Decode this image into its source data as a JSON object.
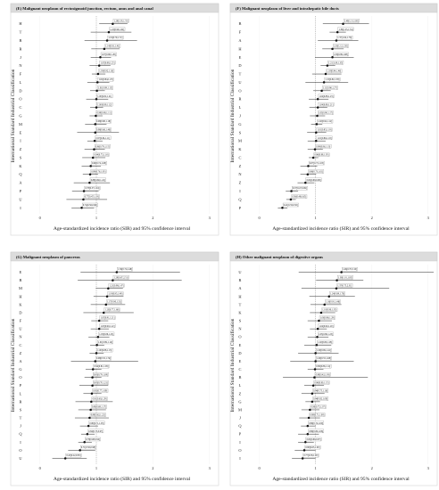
{
  "chart_data": [
    {
      "type": "forest",
      "title": "(E) Malignant neoplasm of rectosigmoid junction, rectum, anus and anal canal",
      "xlabel": "Age-standardized incidence ratio (SIR) and 95% confidence interval",
      "ylabel": "International Standard Industrial Classification",
      "xlim": [
        -0.2,
        3.1
      ],
      "xticks": [
        0,
        1,
        2,
        3
      ],
      "reference_line": 1,
      "rows": [
        {
          "cat": "H",
          "sir": 1.29,
          "lo": 1.05,
          "hi": 1.55,
          "label": "1.29[1.05,1.55]"
        },
        {
          "cat": "T",
          "sir": 1.22,
          "lo": 0.9,
          "hi": 1.62,
          "label": "1.22[0.90,1.62]"
        },
        {
          "cat": "B",
          "sir": 1.19,
          "lo": 0.79,
          "hi": 1.72,
          "label": "1.19[0.79,1.72]"
        },
        {
          "cat": "R",
          "sir": 1.14,
          "lo": 0.91,
          "hi": 1.41,
          "label": "1.14[0.91,1.41]"
        },
        {
          "cat": "J",
          "sir": 1.07,
          "lo": 0.9,
          "hi": 1.26,
          "label": "1.07[0.90,1.26]"
        },
        {
          "cat": "N",
          "sir": 1.05,
          "lo": 0.88,
          "hi": 1.25,
          "label": "1.05[0.88,1.25]"
        },
        {
          "cat": "F",
          "sir": 1.03,
          "lo": 0.92,
          "hi": 1.16,
          "label": "1.03[0.92,1.16]"
        },
        {
          "cat": "L",
          "sir": 1.02,
          "lo": 0.84,
          "hi": 1.23,
          "label": "1.02[0.84,1.23]"
        },
        {
          "cat": "D",
          "sir": 1.01,
          "lo": 0.89,
          "hi": 1.15,
          "label": "1.01[0.89,1.15]"
        },
        {
          "cat": "O",
          "sir": 1.0,
          "lo": 0.82,
          "hi": 1.21,
          "label": "1.00[0.82,1.21]"
        },
        {
          "cat": "C",
          "sir": 1.0,
          "lo": 0.89,
          "hi": 1.12,
          "label": "1.00[0.89,1.12]"
        },
        {
          "cat": "G",
          "sir": 0.99,
          "lo": 0.88,
          "hi": 1.11,
          "label": "0.99[0.88,1.11]"
        },
        {
          "cat": "M",
          "sir": 0.98,
          "lo": 0.8,
          "hi": 1.18,
          "label": "0.98[0.80,1.18]"
        },
        {
          "cat": "E",
          "sir": 0.98,
          "lo": 0.66,
          "hi": 1.4,
          "label": "0.98[0.66,1.40]"
        },
        {
          "cat": "I",
          "sir": 0.97,
          "lo": 0.84,
          "hi": 1.11,
          "label": "0.97[0.84,1.11]"
        },
        {
          "cat": "Z",
          "sir": 0.96,
          "lo": 0.79,
          "hi": 1.15,
          "label": "0.96[0.79,1.15]"
        },
        {
          "cat": "S",
          "sir": 0.94,
          "lo": 0.75,
          "hi": 1.16,
          "label": "0.94[0.75,1.16]"
        },
        {
          "cat": "K",
          "sir": 0.9,
          "lo": 0.74,
          "hi": 1.08,
          "label": "0.90[0.74,1.08]"
        },
        {
          "cat": "Q",
          "sir": 0.89,
          "lo": 0.76,
          "hi": 1.03,
          "label": "0.89[0.76,1.03]"
        },
        {
          "cat": "A",
          "sir": 0.88,
          "lo": 0.6,
          "hi": 1.24,
          "label": "0.88[0.60,1.24]"
        },
        {
          "cat": "P",
          "sir": 0.78,
          "lo": 0.57,
          "hi": 1.04,
          "label": "0.78[0.57,1.04]"
        },
        {
          "cat": "U",
          "sir": 0.77,
          "lo": 0.47,
          "hi": 1.19,
          "label": "0.77[0.47,1.19]"
        },
        {
          "cat": "I",
          "sir": 0.74,
          "lo": 0.56,
          "hi": 0.96,
          "label": "0.74[0.56,0.96]"
        }
      ]
    },
    {
      "type": "forest",
      "title": "(F) Malignant neoplasm of liver and intrahepatic bile ducts",
      "xlabel": "Age-standardized incidence ratio (SIR) and 95% confidence interval",
      "ylabel": "International Standard Industrial Classification",
      "xlim": [
        -0.2,
        3.1
      ],
      "xticks": [
        0,
        1,
        2,
        3
      ],
      "reference_line": 1,
      "rows": [
        {
          "cat": "B",
          "sir": 1.49,
          "lo": 1.13,
          "hi": 1.95,
          "label": "1.49[1.13,1.95]"
        },
        {
          "cat": "F",
          "sir": 1.39,
          "lo": 1.25,
          "hi": 1.54,
          "label": "1.39[1.25,1.54]"
        },
        {
          "cat": "A",
          "sir": 1.37,
          "lo": 1.04,
          "hi": 1.76,
          "label": "1.37[1.04,1.76]"
        },
        {
          "cat": "H",
          "sir": 1.3,
          "lo": 1.12,
          "hi": 1.5,
          "label": "1.30[1.12,1.50]"
        },
        {
          "cat": "E",
          "sir": 1.3,
          "lo": 0.99,
          "hi": 1.68,
          "label": "1.30[0.99,1.68]"
        },
        {
          "cat": "D",
          "sir": 1.21,
          "lo": 1.09,
          "hi": 1.35,
          "label": "1.21[1.09,1.35]"
        },
        {
          "cat": "T",
          "sir": 1.18,
          "lo": 0.94,
          "hi": 1.46,
          "label": "1.18[0.94,1.46]"
        },
        {
          "cat": "U",
          "sir": 1.15,
          "lo": 0.82,
          "hi": 1.58,
          "label": "1.15[0.82,1.58]"
        },
        {
          "cat": "O",
          "sir": 1.11,
          "lo": 0.96,
          "hi": 1.27,
          "label": "1.11[0.96,1.27]"
        },
        {
          "cat": "R",
          "sir": 1.04,
          "lo": 0.88,
          "hi": 1.23,
          "label": "1.04[0.88,1.23]"
        },
        {
          "cat": "L",
          "sir": 1.04,
          "lo": 0.89,
          "hi": 1.21,
          "label": "1.04[0.89,1.21]"
        },
        {
          "cat": "J",
          "sir": 1.03,
          "lo": 0.9,
          "hi": 1.17,
          "label": "1.03[0.90,1.17]"
        },
        {
          "cat": "G",
          "sir": 1.02,
          "lo": 0.92,
          "hi": 1.12,
          "label": "1.02[0.92,1.12]"
        },
        {
          "cat": "S",
          "sir": 1.01,
          "lo": 0.85,
          "hi": 1.19,
          "label": "1.01[0.85,1.19]"
        },
        {
          "cat": "M",
          "sir": 1.01,
          "lo": 0.86,
          "hi": 1.18,
          "label": "1.01[0.86,1.18]"
        },
        {
          "cat": "K",
          "sir": 0.99,
          "lo": 0.86,
          "hi": 1.13,
          "label": "0.99[0.86,1.13]"
        },
        {
          "cat": "C",
          "sir": 0.96,
          "lo": 0.88,
          "hi": 1.05,
          "label": "0.96[0.88,1.05]"
        },
        {
          "cat": "Z",
          "sir": 0.87,
          "lo": 0.73,
          "hi": 1.03,
          "label": "0.87[0.73,1.03]"
        },
        {
          "cat": "N",
          "sir": 0.86,
          "lo": 0.73,
          "hi": 1.01,
          "label": "0.86[0.73,1.01]"
        },
        {
          "cat": "Z",
          "sir": 0.82,
          "lo": 0.68,
          "hi": 0.98,
          "label": "0.82[0.68,0.98]"
        },
        {
          "cat": "I",
          "sir": 0.57,
          "lo": 0.47,
          "hi": 0.69,
          "label": "0.57[0.47,0.69]"
        },
        {
          "cat": "Q",
          "sir": 0.56,
          "lo": 0.48,
          "hi": 0.65,
          "label": "0.56[0.48,0.65]"
        },
        {
          "cat": "P",
          "sir": 0.41,
          "lo": 0.33,
          "hi": 0.5,
          "label": "0.41[0.33,0.50]"
        }
      ]
    },
    {
      "type": "forest",
      "title": "(G) Malignant neoplasm of pancreas",
      "xlabel": "Age-standardized incidence ratio (SIR) and 95% confidence interval",
      "ylabel": "International Standard Industrial Classification",
      "xlim": [
        -0.2,
        3.1
      ],
      "xticks": [
        0,
        1,
        2,
        3
      ],
      "reference_line": 1,
      "rows": [
        {
          "cat": "E",
          "sir": 1.36,
          "lo": 0.72,
          "hi": 2.48,
          "label": "1.36[0.72,2.48]"
        },
        {
          "cat": "B",
          "sir": 1.29,
          "lo": 0.67,
          "hi": 2.51,
          "label": "1.29[0.67,2.51]"
        },
        {
          "cat": "M",
          "sir": 1.21,
          "lo": 0.99,
          "hi": 1.47,
          "label": "1.21[0.99,1.47]"
        },
        {
          "cat": "H",
          "sir": 1.19,
          "lo": 0.95,
          "hi": 1.48,
          "label": "1.19[0.95,1.48]"
        },
        {
          "cat": "K",
          "sir": 1.17,
          "lo": 0.9,
          "hi": 1.51,
          "label": "1.17[0.90,1.51]"
        },
        {
          "cat": "D",
          "sir": 1.13,
          "lo": 0.77,
          "hi": 1.66,
          "label": "1.13[0.77,1.66]"
        },
        {
          "cat": "F",
          "sir": 1.05,
          "lo": 0.91,
          "hi": 1.21,
          "label": "1.05[0.91,1.21]"
        },
        {
          "cat": "U",
          "sir": 1.05,
          "lo": 0.9,
          "hi": 1.22,
          "label": "1.05[0.90,1.22]"
        },
        {
          "cat": "N",
          "sir": 1.03,
          "lo": 0.86,
          "hi": 1.23,
          "label": "1.03[0.86,1.23]"
        },
        {
          "cat": "C",
          "sir": 1.01,
          "lo": 0.89,
          "hi": 1.14,
          "label": "1.01[0.89,1.14]"
        },
        {
          "cat": "Z",
          "sir": 1.0,
          "lo": 0.88,
          "hi": 1.13,
          "label": "1.00[0.88,1.13]"
        },
        {
          "cat": "A",
          "sir": 0.98,
          "lo": 0.55,
          "hi": 1.74,
          "label": "0.98[0.55,1.74]"
        },
        {
          "cat": "G",
          "sir": 0.94,
          "lo": 0.81,
          "hi": 1.09,
          "label": "0.94[0.81,1.09]"
        },
        {
          "cat": "O",
          "sir": 0.93,
          "lo": 0.79,
          "hi": 1.09,
          "label": "0.93[0.79,1.09]"
        },
        {
          "cat": "P",
          "sir": 0.93,
          "lo": 0.7,
          "hi": 1.21,
          "label": "0.93[0.70,1.21]"
        },
        {
          "cat": "L",
          "sir": 0.92,
          "lo": 0.77,
          "hi": 1.09,
          "label": "0.92[0.77,1.09]"
        },
        {
          "cat": "R",
          "sir": 0.91,
          "lo": 0.63,
          "hi": 1.29,
          "label": "0.91[0.63,1.29]"
        },
        {
          "cat": "S",
          "sir": 0.9,
          "lo": 0.68,
          "hi": 1.17,
          "label": "0.90[0.68,1.17]"
        },
        {
          "cat": "T",
          "sir": 0.88,
          "lo": 0.62,
          "hi": 1.22,
          "label": "0.88[0.62,1.22]"
        },
        {
          "cat": "J",
          "sir": 0.86,
          "lo": 0.71,
          "hi": 1.03,
          "label": "0.86[0.71,1.03]"
        },
        {
          "cat": "Q",
          "sir": 0.84,
          "lo": 0.73,
          "hi": 0.97,
          "label": "0.84[0.73,0.97]"
        },
        {
          "cat": "I",
          "sir": 0.79,
          "lo": 0.68,
          "hi": 0.92,
          "label": "0.79[0.68,0.92]"
        },
        {
          "cat": "O",
          "sir": 0.71,
          "lo": 0.5,
          "hi": 0.98,
          "label": "0.71[0.50,0.98]"
        },
        {
          "cat": "U",
          "sir": 0.45,
          "lo": 0.22,
          "hi": 0.83,
          "label": "0.45[0.22,0.83]"
        }
      ]
    },
    {
      "type": "forest",
      "title": "(H) Other malignant neoplasm of digestive organs",
      "xlabel": "Age-standardized incidence ratio (SIR) and 95% confidence interval",
      "ylabel": "International Standard Industrial Classification",
      "xlim": [
        -0.2,
        3.1
      ],
      "xticks": [
        0,
        1,
        2,
        3
      ],
      "reference_line": 1,
      "rows": [
        {
          "cat": "U",
          "sir": 1.46,
          "lo": 0.7,
          "hi": 3.1,
          "label": "1.46[0.70,3.10]"
        },
        {
          "cat": "R",
          "sir": 1.38,
          "lo": 1.01,
          "hi": 1.85,
          "label": "1.38[1.01,1.85]"
        },
        {
          "cat": "A",
          "sir": 1.37,
          "lo": 0.75,
          "hi": 2.31,
          "label": "1.37[0.75,2.31]"
        },
        {
          "cat": "H",
          "sir": 1.24,
          "lo": 0.89,
          "hi": 1.7,
          "label": "1.24[0.89,1.70]"
        },
        {
          "cat": "T",
          "sir": 1.16,
          "lo": 0.91,
          "hi": 1.46,
          "label": "1.16[0.91,1.46]"
        },
        {
          "cat": "K",
          "sir": 1.1,
          "lo": 0.9,
          "hi": 1.35,
          "label": "1.10[0.90,1.35]"
        },
        {
          "cat": "S",
          "sir": 1.06,
          "lo": 0.86,
          "hi": 1.29,
          "label": "1.06[0.86,1.29]"
        },
        {
          "cat": "N",
          "sir": 1.04,
          "lo": 0.9,
          "hi": 1.2,
          "label": "1.04[0.90,1.20]"
        },
        {
          "cat": "O",
          "sir": 1.03,
          "lo": 0.86,
          "hi": 1.23,
          "label": "1.03[0.86,1.23]"
        },
        {
          "cat": "E",
          "sir": 1.02,
          "lo": 0.8,
          "hi": 1.28,
          "label": "1.02[0.80,1.28]"
        },
        {
          "cat": "D",
          "sir": 1.0,
          "lo": 0.69,
          "hi": 1.41,
          "label": "1.00[0.69,1.41]"
        },
        {
          "cat": "E",
          "sir": 1.0,
          "lo": 0.55,
          "hi": 1.68,
          "label": "1.00[0.55,1.68]"
        },
        {
          "cat": "C",
          "sir": 0.99,
          "lo": 0.86,
          "hi": 1.14,
          "label": "0.99[0.86,1.14]"
        },
        {
          "cat": "B",
          "sir": 0.98,
          "lo": 0.42,
          "hi": 1.93,
          "label": "0.98[0.42,1.93]"
        },
        {
          "cat": "L",
          "sir": 0.96,
          "lo": 0.8,
          "hi": 1.15,
          "label": "0.96[0.80,1.15]"
        },
        {
          "cat": "Z",
          "sir": 0.94,
          "lo": 0.75,
          "hi": 1.16,
          "label": "0.94[0.75,1.16]"
        },
        {
          "cat": "G",
          "sir": 0.94,
          "lo": 0.82,
          "hi": 1.08,
          "label": "0.94[0.82,1.08]"
        },
        {
          "cat": "M",
          "sir": 0.9,
          "lo": 0.75,
          "hi": 1.07,
          "label": "0.90[0.75,1.07]"
        },
        {
          "cat": "J",
          "sir": 0.88,
          "lo": 0.71,
          "hi": 1.08,
          "label": "0.88[0.71,1.08]"
        },
        {
          "cat": "Q",
          "sir": 0.86,
          "lo": 0.74,
          "hi": 1.0,
          "label": "0.86[0.74,1.00]"
        },
        {
          "cat": "P",
          "sir": 0.86,
          "lo": 0.69,
          "hi": 1.06,
          "label": "0.86[0.69,1.06]"
        },
        {
          "cat": "I",
          "sir": 0.82,
          "lo": 0.69,
          "hi": 0.97,
          "label": "0.82[0.69,0.97]"
        },
        {
          "cat": "O",
          "sir": 0.8,
          "lo": 0.63,
          "hi": 1.0,
          "label": "0.80[0.63,1.00]"
        },
        {
          "cat": "I",
          "sir": 0.77,
          "lo": 0.58,
          "hi": 1.0,
          "label": "0.77[0.58,1.00]"
        }
      ]
    }
  ],
  "colors": {
    "strip": "#dcdcdc",
    "marks": "#111111",
    "reference_line": "#8a8a8a",
    "panel_border": "#d6d6d6"
  }
}
